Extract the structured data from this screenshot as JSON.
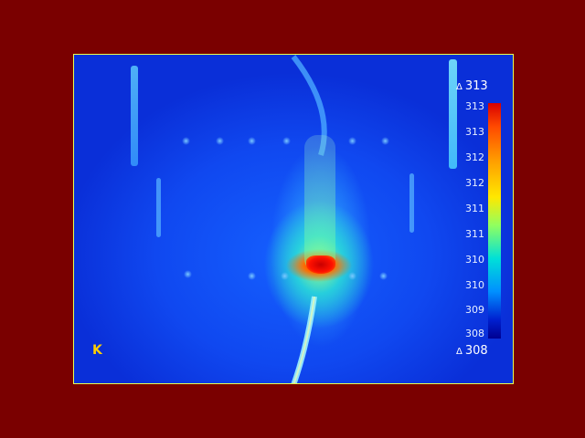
{
  "scale": {
    "max": "313",
    "min": "308",
    "ticks": [
      "313",
      "313",
      "312",
      "312",
      "311",
      "311",
      "310",
      "310",
      "309",
      "308"
    ],
    "marker_symbol": "Δ",
    "colormap": [
      "#d80000",
      "#ff4a00",
      "#ffa000",
      "#ffe800",
      "#90ff60",
      "#00e0d8",
      "#0090ff",
      "#0020d0",
      "#000090"
    ]
  },
  "unit": "K",
  "colors": {
    "border": "#7a0000",
    "frame_edge": "#e8ff50",
    "background": "#1048f0",
    "hotspot": "#ff2a00"
  }
}
